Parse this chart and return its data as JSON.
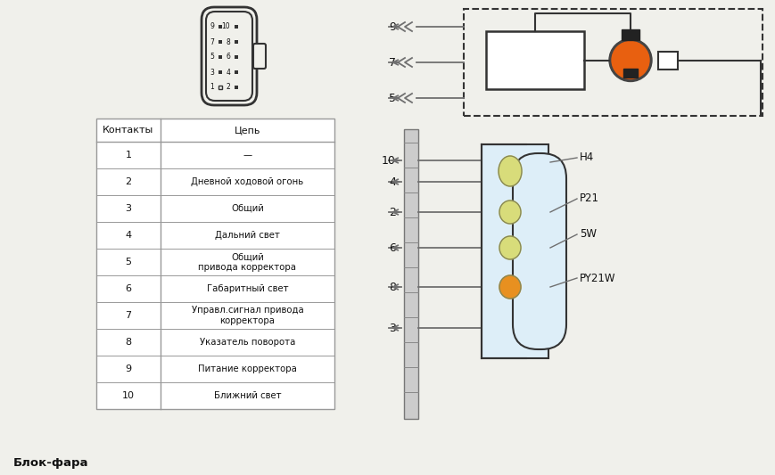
{
  "bg_color": "#f0f0eb",
  "title": "Блок-фара",
  "table_header": [
    "Контакты",
    "Цепь"
  ],
  "table_rows": [
    [
      "1",
      "—"
    ],
    [
      "2",
      "Дневной ходовой огонь"
    ],
    [
      "3",
      "Общий"
    ],
    [
      "4",
      "Дальний свет"
    ],
    [
      "5",
      "Общий\nпривода корректора"
    ],
    [
      "6",
      "Габаритный свет"
    ],
    [
      "7",
      "Управл.сигнал привода\nкорректора"
    ],
    [
      "8",
      "Указатель поворота"
    ],
    [
      "9",
      "Питание корректора"
    ],
    [
      "10",
      "Ближний свет"
    ]
  ],
  "lamp_colors": [
    "#d8dc7a",
    "#d8dc7a",
    "#d8dc7a",
    "#e89020"
  ],
  "lamp_labels": [
    "H4",
    "P21",
    "5W",
    "PY21W"
  ],
  "corrector_orange": "#e86010",
  "line_color": "#707070",
  "dark_color": "#333333",
  "text_color": "#111111"
}
